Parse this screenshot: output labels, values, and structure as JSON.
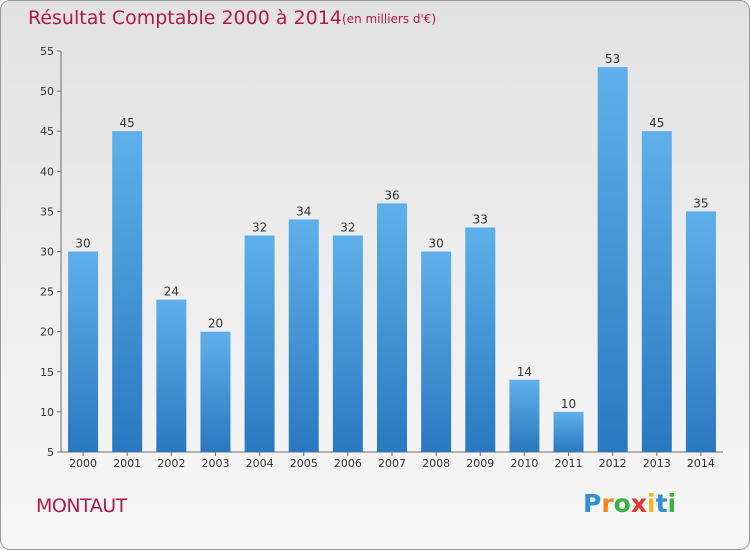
{
  "chart_data": {
    "type": "bar",
    "title": "Résultat Comptable 2000 à 2014",
    "subtitle": "(en milliers d'€)",
    "categories": [
      "2000",
      "2001",
      "2002",
      "2003",
      "2004",
      "2005",
      "2006",
      "2007",
      "2008",
      "2009",
      "2010",
      "2011",
      "2012",
      "2013",
      "2014"
    ],
    "values": [
      30,
      45,
      24,
      20,
      32,
      34,
      32,
      36,
      30,
      33,
      14,
      10,
      53,
      45,
      35
    ],
    "ylim": [
      5,
      55
    ],
    "yticks": [
      5,
      10,
      15,
      20,
      25,
      30,
      35,
      40,
      45,
      50,
      55
    ],
    "xlabel": "",
    "ylabel": "",
    "grid": false,
    "bar_color": "#3d8fd1"
  },
  "footer": {
    "commune": "MONTAUT",
    "logo_letters": [
      {
        "ch": "P",
        "color": "#2f8fd8"
      },
      {
        "ch": "r",
        "color": "#f08a1c"
      },
      {
        "ch": "o",
        "color": "#3caf45"
      },
      {
        "ch": "x",
        "color": "#e8362c"
      },
      {
        "ch": "i",
        "color": "#f2b51b"
      },
      {
        "ch": "t",
        "color": "#2f8fd8"
      },
      {
        "ch": "i",
        "color": "#3caf45"
      }
    ]
  }
}
